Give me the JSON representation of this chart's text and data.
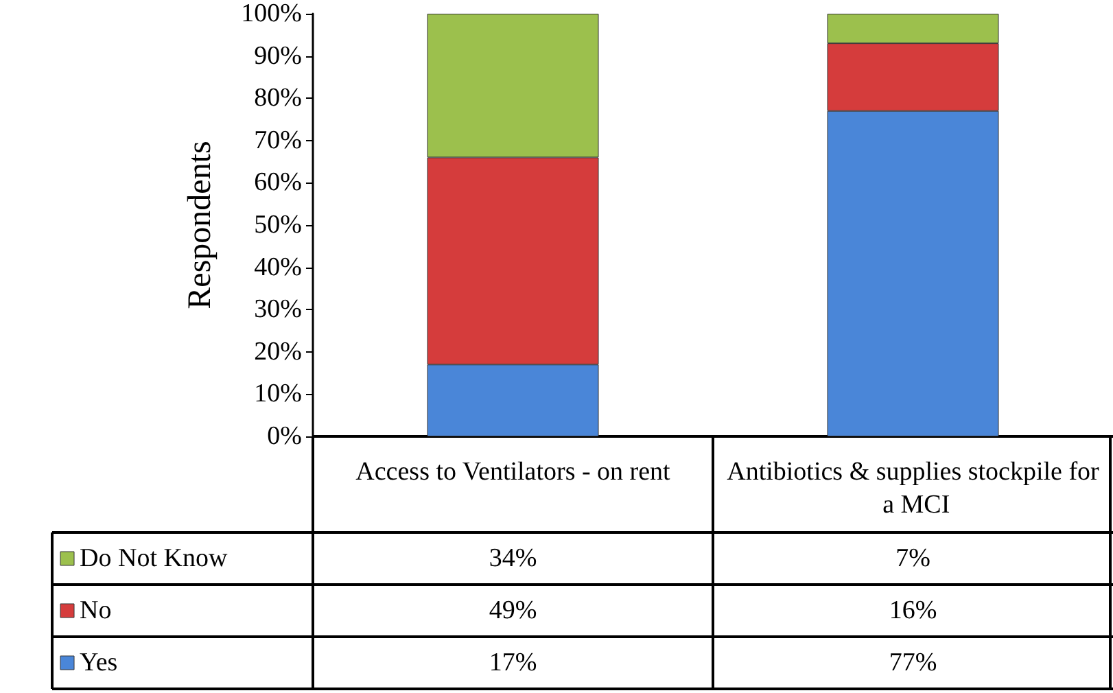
{
  "chart_data": {
    "type": "bar",
    "stacked": true,
    "ylabel": "Respondents",
    "categories": [
      "Access to Ventilators - on rent",
      "Antibiotics & supplies stockpile for a MCI"
    ],
    "ylim": [
      0,
      100
    ],
    "yticks": [
      {
        "value": 0,
        "label": "0%"
      },
      {
        "value": 10,
        "label": "10%"
      },
      {
        "value": 20,
        "label": "20%"
      },
      {
        "value": 30,
        "label": "30%"
      },
      {
        "value": 40,
        "label": "40%"
      },
      {
        "value": 50,
        "label": "50%"
      },
      {
        "value": 60,
        "label": "60%"
      },
      {
        "value": 70,
        "label": "70%"
      },
      {
        "value": 80,
        "label": "80%"
      },
      {
        "value": 90,
        "label": "90%"
      },
      {
        "value": 100,
        "label": "100%"
      }
    ],
    "grid": false,
    "legend": "bottom",
    "series": [
      {
        "name": "Yes",
        "color": "#4a86d8",
        "values": [
          17,
          77
        ],
        "value_labels": [
          "17%",
          "77%"
        ]
      },
      {
        "name": "No",
        "color": "#d53c3c",
        "values": [
          49,
          16
        ],
        "value_labels": [
          "49%",
          "16%"
        ]
      },
      {
        "name": "Do Not Know",
        "color": "#9cc04d",
        "values": [
          34,
          7
        ],
        "value_labels": [
          "34%",
          "7%"
        ]
      }
    ]
  }
}
